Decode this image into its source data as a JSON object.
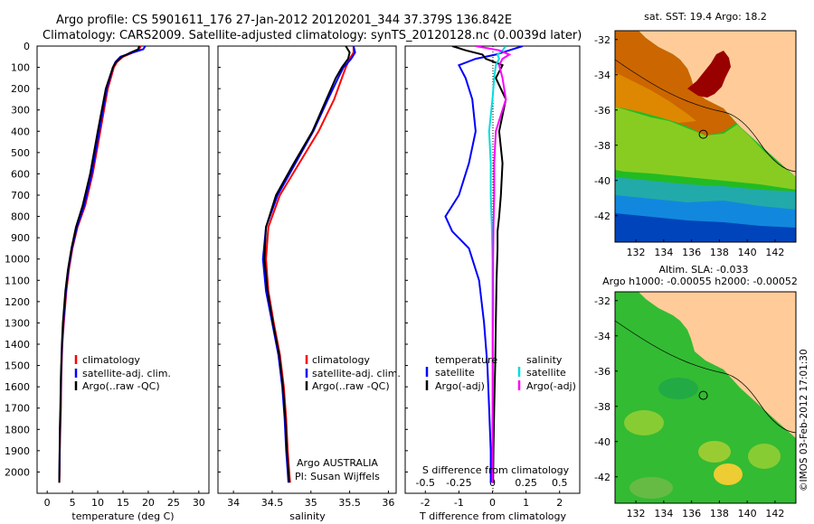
{
  "header": {
    "line1": "Argo profile: CS 5901611_176 27-Jan-2012 20120201_344 37.379S 136.842E",
    "line2": "Climatology: CARS2009. Satellite-adjusted climatology: synTS_20120128.nc (0.0039d later)"
  },
  "colors": {
    "climatology": "#ff0000",
    "satellite": "#0000ff",
    "argo": "#000000",
    "sat_s": "#00dddd",
    "argo_s": "#ff00ff"
  },
  "chart_data": [
    {
      "type": "line",
      "name": "temperature-profile",
      "xlabel": "temperature (deg C)",
      "xlim": [
        -2,
        32
      ],
      "xticks": [
        0,
        5,
        10,
        15,
        20,
        25,
        30
      ],
      "ylim": [
        2100,
        0
      ],
      "yticks": [
        0,
        100,
        200,
        300,
        400,
        500,
        600,
        700,
        800,
        900,
        1000,
        1100,
        1200,
        1300,
        1400,
        1500,
        1600,
        1700,
        1800,
        1900,
        2000
      ],
      "legend": [
        "climatology",
        "satellite-adj. clim.",
        "Argo(..raw -QC)"
      ],
      "series": [
        {
          "name": "climatology",
          "color": "#ff0000",
          "x": [
            18.5,
            18.2,
            17.0,
            15.0,
            13.8,
            13.2,
            12.6,
            12.0,
            10.5,
            9.0,
            7.5,
            6.0,
            5.0,
            4.3,
            3.8,
            3.3,
            3.0,
            2.8,
            2.7,
            2.6,
            2.5,
            2.45,
            2.4
          ],
          "y": [
            0,
            15,
            30,
            50,
            75,
            100,
            150,
            200,
            400,
            600,
            750,
            850,
            950,
            1050,
            1150,
            1300,
            1400,
            1550,
            1700,
            1800,
            1900,
            2000,
            2050
          ]
        },
        {
          "name": "satellite-adj. clim.",
          "color": "#0000ff",
          "x": [
            19.4,
            19.0,
            17.0,
            14.5,
            13.5,
            13.0,
            12.4,
            11.8,
            10.3,
            8.8,
            7.3,
            5.9,
            4.9,
            4.2,
            3.7,
            3.2,
            2.95,
            2.75,
            2.65,
            2.55,
            2.48,
            2.42,
            2.38
          ],
          "y": [
            0,
            15,
            30,
            50,
            75,
            100,
            150,
            200,
            400,
            600,
            750,
            850,
            950,
            1050,
            1150,
            1300,
            1400,
            1550,
            1700,
            1800,
            1900,
            2000,
            2050
          ]
        },
        {
          "name": "Argo(..raw -QC)",
          "color": "#000000",
          "x": [
            18.2,
            18.0,
            16.5,
            14.8,
            13.6,
            13.0,
            12.3,
            11.6,
            10.0,
            8.5,
            7.0,
            5.7,
            4.8,
            4.1,
            3.6,
            3.1,
            2.9,
            2.7,
            2.6,
            2.5,
            2.45,
            2.4,
            2.38
          ],
          "y": [
            0,
            15,
            30,
            50,
            75,
            100,
            150,
            200,
            400,
            600,
            750,
            850,
            950,
            1050,
            1150,
            1300,
            1400,
            1550,
            1700,
            1800,
            1900,
            2000,
            2050
          ]
        }
      ]
    },
    {
      "type": "line",
      "name": "salinity-profile",
      "xlabel": "salinity",
      "xlim": [
        33.8,
        36.1
      ],
      "xticks": [
        34,
        34.5,
        35,
        35.5,
        36
      ],
      "ylim": [
        2100,
        0
      ],
      "legend": [
        "climatology",
        "satellite-adj. clim.",
        "Argo(..raw -QC)"
      ],
      "annotation": [
        "Argo AUSTRALIA",
        "PI: Susan Wijffels"
      ],
      "series": [
        {
          "name": "climatology",
          "color": "#ff0000",
          "x": [
            35.55,
            35.55,
            35.5,
            35.45,
            35.4,
            35.3,
            35.1,
            34.85,
            34.6,
            34.45,
            34.42,
            34.45,
            34.52,
            34.6,
            34.65,
            34.68,
            34.7,
            34.72,
            34.73
          ],
          "y": [
            0,
            30,
            60,
            100,
            150,
            250,
            400,
            550,
            700,
            850,
            1000,
            1150,
            1300,
            1450,
            1600,
            1750,
            1900,
            2000,
            2050
          ]
        },
        {
          "name": "satellite-adj. clim.",
          "color": "#0000ff",
          "x": [
            35.55,
            35.57,
            35.52,
            35.42,
            35.35,
            35.22,
            35.03,
            34.8,
            34.57,
            34.42,
            34.38,
            34.42,
            34.5,
            34.58,
            34.63,
            34.66,
            34.68,
            34.7,
            34.71
          ],
          "y": [
            0,
            30,
            60,
            100,
            150,
            250,
            400,
            550,
            700,
            850,
            1000,
            1150,
            1300,
            1450,
            1600,
            1750,
            1900,
            2000,
            2050
          ]
        },
        {
          "name": "Argo(..raw -QC)",
          "color": "#000000",
          "x": [
            35.45,
            35.5,
            35.48,
            35.4,
            35.32,
            35.2,
            35.02,
            34.78,
            34.55,
            34.42,
            34.4,
            34.44,
            34.51,
            34.59,
            34.64,
            34.67,
            34.69,
            34.71,
            34.72
          ],
          "y": [
            0,
            30,
            60,
            100,
            150,
            250,
            400,
            550,
            700,
            850,
            1000,
            1150,
            1300,
            1450,
            1600,
            1750,
            1900,
            2000,
            2050
          ]
        }
      ]
    },
    {
      "type": "line",
      "name": "difference-profile",
      "xlabel": "T difference from climatology",
      "xlabel_top": "S difference from climatology",
      "xlim": [
        -2.6,
        2.6
      ],
      "xticks": [
        -2,
        -1,
        0,
        1,
        2
      ],
      "xticks_top": [
        -0.5,
        -0.25,
        0,
        0.25,
        0.5
      ],
      "ylim": [
        2100,
        0
      ],
      "legend_left": [
        "temperature",
        "satellite",
        "Argo(-adj)"
      ],
      "legend_right": [
        "salinity",
        "satellite",
        "Argo(-adj)"
      ],
      "series": [
        {
          "name": "satellite",
          "color": "#0000ff",
          "x": [
            0.9,
            0.5,
            0.1,
            -0.5,
            -1.0,
            -0.8,
            -0.6,
            -0.5,
            -0.7,
            -1.0,
            -1.4,
            -1.2,
            -0.7,
            -0.4,
            -0.25,
            -0.15,
            -0.1,
            -0.05,
            -0.05
          ],
          "y": [
            0,
            20,
            40,
            60,
            90,
            150,
            250,
            400,
            550,
            700,
            800,
            870,
            950,
            1100,
            1300,
            1500,
            1700,
            1900,
            2050
          ]
        },
        {
          "name": "Argo(-adj)",
          "color": "#000000",
          "x": [
            -1.2,
            -0.8,
            -0.3,
            -0.2,
            0.3,
            0.1,
            0.4,
            0.2,
            0.3,
            0.25,
            0.2,
            0.15,
            0.15,
            0.12,
            0.1,
            0.08,
            0.05,
            0.03,
            0.02
          ],
          "y": [
            0,
            20,
            40,
            60,
            90,
            150,
            250,
            400,
            550,
            700,
            800,
            870,
            950,
            1100,
            1300,
            1500,
            1700,
            1900,
            2050
          ]
        },
        {
          "name": "salinity satellite",
          "color": "#00dddd",
          "x": [
            0.4,
            0.3,
            0.15,
            0.2,
            0.1,
            0.05,
            0.0,
            -0.1,
            -0.05,
            -0.05,
            -0.02,
            0.0,
            0.0,
            0.0,
            0.0,
            0.0,
            0.0,
            0.0
          ],
          "y": [
            0,
            20,
            40,
            60,
            90,
            150,
            250,
            400,
            550,
            700,
            850,
            1000,
            1200,
            1400,
            1600,
            1800,
            1950,
            2050
          ]
        },
        {
          "name": "salinity Argo(-adj)",
          "color": "#ff00ff",
          "x": [
            -0.5,
            0.2,
            0.5,
            0.3,
            0.2,
            0.3,
            0.4,
            0.1,
            0.05,
            0.05,
            0.03,
            0.02,
            0.02,
            0.01,
            0.01,
            0.0,
            0.0,
            0.0
          ],
          "y": [
            0,
            20,
            40,
            60,
            90,
            150,
            250,
            400,
            550,
            700,
            850,
            1000,
            1200,
            1400,
            1600,
            1800,
            1950,
            2050
          ]
        }
      ]
    },
    {
      "type": "heatmap",
      "name": "sst-map",
      "title": "sat. SST: 19.4  Argo: 18.2",
      "xlim": [
        130.5,
        143.5
      ],
      "ylim": [
        -43.5,
        -31.5
      ],
      "xticks": [
        132,
        134,
        136,
        138,
        140,
        142
      ],
      "yticks": [
        -32,
        -34,
        -36,
        -38,
        -40,
        -42
      ],
      "float_position": {
        "lon": 136.842,
        "lat": -37.379
      }
    },
    {
      "type": "heatmap",
      "name": "sla-map",
      "title": "Altim. SLA: -0.033",
      "subtitle": "Argo h1000: -0.00055 h2000: -0.00052",
      "xlim": [
        130.5,
        143.5
      ],
      "ylim": [
        -43.5,
        -31.5
      ],
      "xticks": [
        132,
        134,
        136,
        138,
        140,
        142
      ],
      "yticks": [
        -32,
        -34,
        -36,
        -38,
        -40,
        -42
      ],
      "float_position": {
        "lon": 136.842,
        "lat": -37.379
      }
    }
  ],
  "footer": {
    "credit": "©IMOS 03-Feb-2012 17:01:30"
  }
}
